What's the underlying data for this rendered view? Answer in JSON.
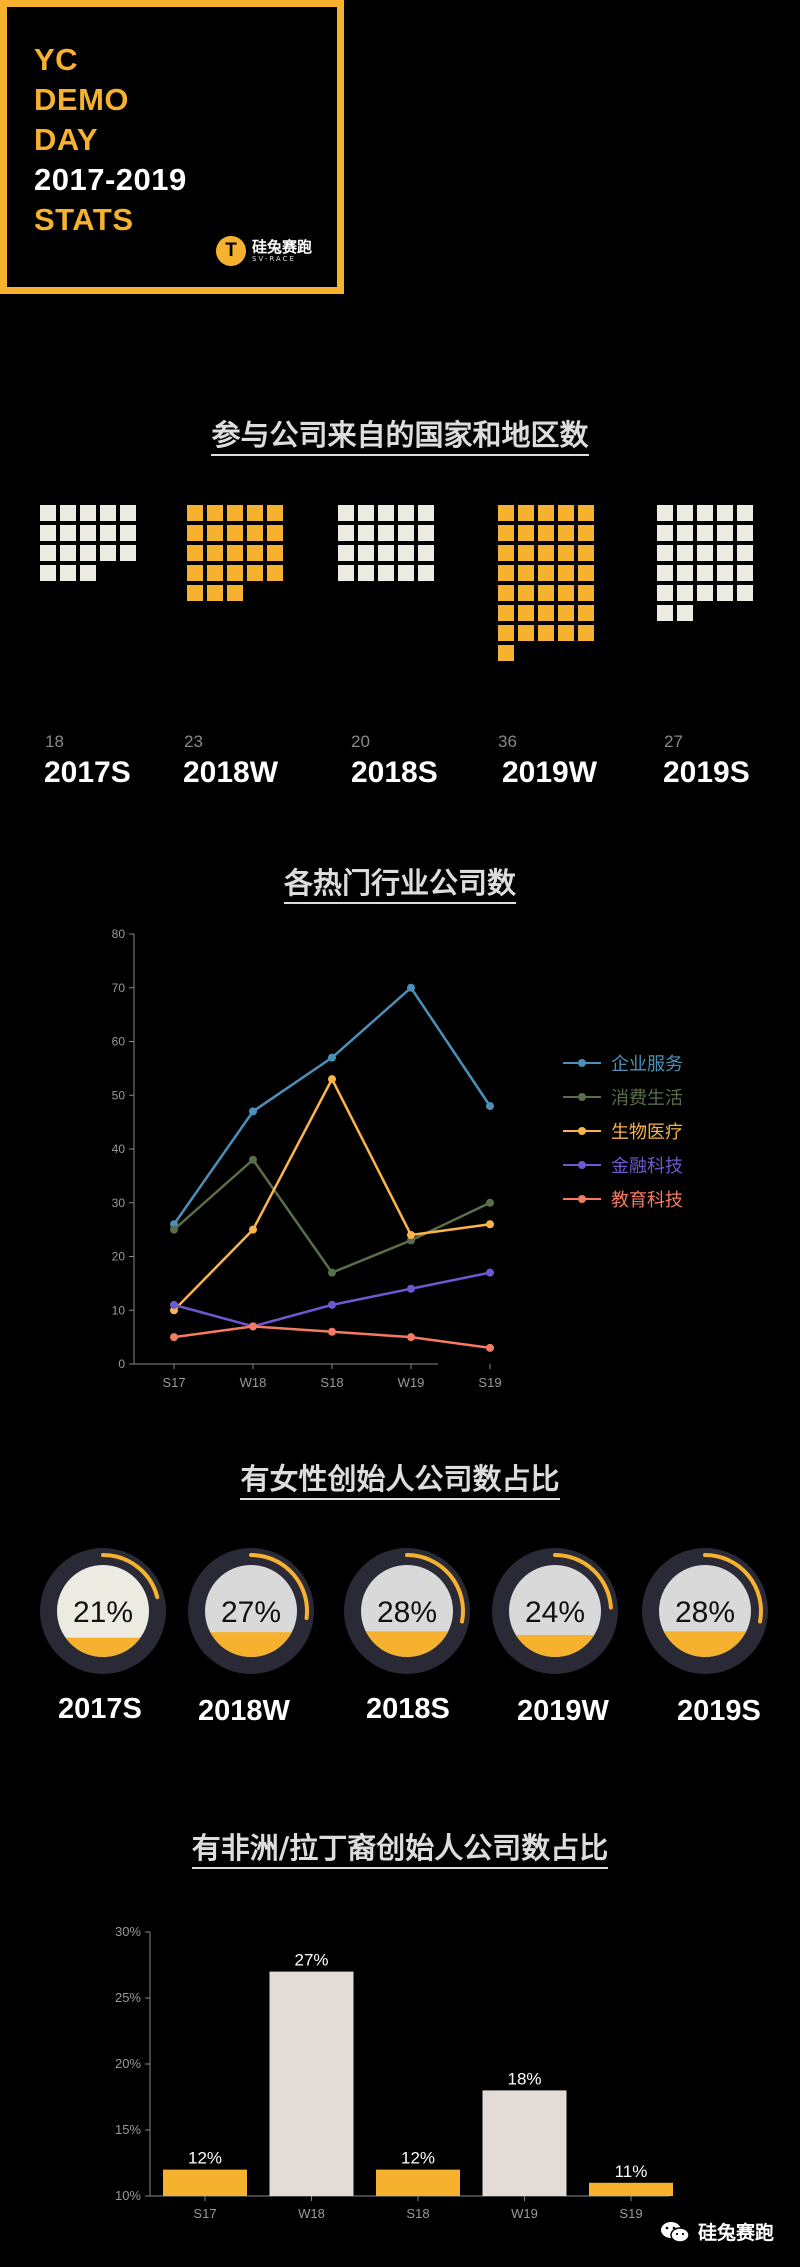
{
  "title_box": {
    "lines": [
      "YC",
      "DEMO",
      "DAY",
      "2017-2019",
      "STATS"
    ],
    "line_colors": [
      "#f6b22f",
      "#f6b22f",
      "#f6b22f",
      "#ffffff",
      "#f6b22f"
    ],
    "logo_glyph": "T",
    "logo_cn": "硅兔赛跑",
    "logo_en": "SV-RACE",
    "accent": "#f6b22f"
  },
  "sections": {
    "countries": "参与公司来自的国家和地区数",
    "industries": "各热门行业公司数",
    "female": "有女性创始人公司数占比",
    "african_latino": "有非洲/拉丁裔创始人公司数占比"
  },
  "waffles": [
    {
      "count": 18,
      "label": "2017S",
      "color": "white"
    },
    {
      "count": 23,
      "label": "2018W",
      "color": "orange"
    },
    {
      "count": 20,
      "label": "2018S",
      "color": "white"
    },
    {
      "count": 36,
      "label": "2019W",
      "color": "orange"
    },
    {
      "count": 27,
      "label": "2019S",
      "color": "white"
    }
  ],
  "donuts": [
    {
      "label": "2017S",
      "value": 21,
      "text": "21%"
    },
    {
      "label": "2018W",
      "value": 27,
      "text": "27%"
    },
    {
      "label": "2018S",
      "value": 28,
      "text": "28%"
    },
    {
      "label": "2019W",
      "value": 24,
      "text": "24%"
    },
    {
      "label": "2019S",
      "value": 28,
      "text": "28%"
    }
  ],
  "chart_data": [
    {
      "type": "line",
      "categories": [
        "S17",
        "W18",
        "S18",
        "W19",
        "S19"
      ],
      "ylim": [
        0,
        80
      ],
      "yticks": [
        0,
        10,
        20,
        30,
        40,
        50,
        60,
        70,
        80
      ],
      "legend": "right",
      "series": [
        {
          "name": "企业服务",
          "color": "#4a90b8",
          "values": [
            26,
            47,
            57,
            70,
            48
          ]
        },
        {
          "name": "消费生活",
          "color": "#5a6e4a",
          "values": [
            25,
            38,
            17,
            23,
            30
          ]
        },
        {
          "name": "生物医疗",
          "color": "#f9b44a",
          "values": [
            10,
            25,
            53,
            24,
            26
          ]
        },
        {
          "name": "金融科技",
          "color": "#6a5acd",
          "values": [
            11,
            7,
            11,
            14,
            17
          ]
        },
        {
          "name": "教育科技",
          "color": "#f47a63",
          "values": [
            5,
            7,
            6,
            5,
            3
          ]
        }
      ]
    },
    {
      "type": "bar",
      "categories": [
        "S17",
        "W18",
        "S18",
        "W19",
        "S19"
      ],
      "values": [
        12,
        27,
        12,
        18,
        11
      ],
      "value_labels": [
        "12%",
        "27%",
        "12%",
        "18%",
        "11%"
      ],
      "bar_colors": [
        "#f6b22f",
        "#e3dcd6",
        "#f6b22f",
        "#e3dcd6",
        "#f6b22f"
      ],
      "ylim": [
        10,
        30
      ],
      "yticks": [
        10,
        15,
        20,
        25,
        30
      ],
      "ytick_labels": [
        "10%",
        "15%",
        "20%",
        "25%",
        "30%"
      ]
    }
  ],
  "footer": {
    "brand": "硅兔赛跑",
    "icon": "wechat-icon"
  }
}
